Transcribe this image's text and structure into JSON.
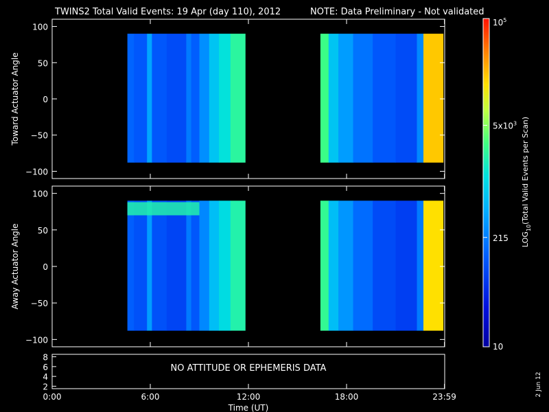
{
  "header": {
    "title": "TWINS2  Total Valid Events: 19 Apr (day 110), 2012",
    "note": "NOTE: Data Preliminary - Not validated",
    "note_color": "#ff2020"
  },
  "footer": {
    "date_stamp": "2 Jun 12",
    "no_data_message": "NO ATTITUDE OR EPHEMERIS DATA"
  },
  "colorbar": {
    "label": "LOG10(Total Valid Events per Scan)",
    "label_prefix": "LOG",
    "label_subscript": "10",
    "label_suffix": "(Total Valid Events per Scan)",
    "scale": "log",
    "ticks": [
      {
        "value": 10,
        "text": "10"
      },
      {
        "value": 215,
        "text": "215"
      },
      {
        "value": 5000,
        "text_base": "5x10",
        "text_exp": "3"
      },
      {
        "value": 100000,
        "text_base": "10",
        "text_exp": "5"
      }
    ]
  },
  "chart_data": [
    {
      "type": "heatmap",
      "name": "toward",
      "ylabel": "Toward Actuator Angle",
      "ylim": [
        -110,
        110
      ],
      "yticks": [
        {
          "v": 100,
          "t": "100"
        },
        {
          "v": 50,
          "t": "50"
        },
        {
          "v": 0,
          "t": "0"
        },
        {
          "v": -50,
          "t": "−50"
        },
        {
          "v": -100,
          "t": "−100"
        }
      ],
      "angle_range": [
        -88,
        90
      ],
      "segments": [
        {
          "t_start": 4.6,
          "t_end": 11.8,
          "note": "morning pass"
        },
        {
          "t_start": 16.4,
          "t_end": 23.9,
          "note": "evening pass"
        }
      ],
      "time_columns": [
        {
          "t0": 4.6,
          "t1": 5.0,
          "log10": 2.15
        },
        {
          "t0": 5.0,
          "t1": 5.8,
          "log10": 2.05
        },
        {
          "t0": 5.8,
          "t1": 6.1,
          "log10": 2.6
        },
        {
          "t0": 6.1,
          "t1": 7.0,
          "log10": 2.05
        },
        {
          "t0": 7.0,
          "t1": 8.2,
          "log10": 1.95
        },
        {
          "t0": 8.2,
          "t1": 8.5,
          "log10": 2.3
        },
        {
          "t0": 8.5,
          "t1": 9.0,
          "log10": 2.1
        },
        {
          "t0": 9.0,
          "t1": 9.6,
          "log10": 2.45
        },
        {
          "t0": 9.6,
          "t1": 10.2,
          "log10": 2.85
        },
        {
          "t0": 10.2,
          "t1": 10.9,
          "log10": 3.1
        },
        {
          "t0": 10.9,
          "t1": 11.8,
          "log10": 3.35
        },
        {
          "t0": 16.4,
          "t1": 16.9,
          "log10": 3.45
        },
        {
          "t0": 16.9,
          "t1": 17.5,
          "log10": 2.85
        },
        {
          "t0": 17.5,
          "t1": 18.4,
          "log10": 2.55
        },
        {
          "t0": 18.4,
          "t1": 19.6,
          "log10": 2.25
        },
        {
          "t0": 19.6,
          "t1": 21.0,
          "log10": 2.05
        },
        {
          "t0": 21.0,
          "t1": 22.3,
          "log10": 1.95
        },
        {
          "t0": 22.3,
          "t1": 22.7,
          "log10": 2.4
        },
        {
          "t0": 22.7,
          "t1": 23.9,
          "log10": 4.3
        }
      ]
    },
    {
      "type": "heatmap",
      "name": "away",
      "ylabel": "Away Actuator Angle",
      "ylim": [
        -110,
        110
      ],
      "yticks": [
        {
          "v": 100,
          "t": "100"
        },
        {
          "v": 50,
          "t": "50"
        },
        {
          "v": 0,
          "t": "0"
        },
        {
          "v": -50,
          "t": "−50"
        },
        {
          "v": -100,
          "t": "−100"
        }
      ],
      "angle_range": [
        -88,
        90
      ],
      "segments": [
        {
          "t_start": 4.6,
          "t_end": 11.8
        },
        {
          "t_start": 16.4,
          "t_end": 23.9
        }
      ],
      "time_columns": [
        {
          "t0": 4.6,
          "t1": 5.0,
          "log10": 2.1
        },
        {
          "t0": 5.0,
          "t1": 5.8,
          "log10": 2.0
        },
        {
          "t0": 5.8,
          "t1": 6.1,
          "log10": 2.55
        },
        {
          "t0": 6.1,
          "t1": 7.0,
          "log10": 2.0
        },
        {
          "t0": 7.0,
          "t1": 8.2,
          "log10": 1.9
        },
        {
          "t0": 8.2,
          "t1": 8.5,
          "log10": 2.3
        },
        {
          "t0": 8.5,
          "t1": 9.0,
          "log10": 2.05
        },
        {
          "t0": 9.0,
          "t1": 9.6,
          "log10": 2.4
        },
        {
          "t0": 9.6,
          "t1": 10.2,
          "log10": 2.8
        },
        {
          "t0": 10.2,
          "t1": 10.9,
          "log10": 3.05
        },
        {
          "t0": 10.9,
          "t1": 11.8,
          "log10": 3.3
        },
        {
          "t0": 16.4,
          "t1": 16.9,
          "log10": 3.4
        },
        {
          "t0": 16.9,
          "t1": 17.5,
          "log10": 2.8
        },
        {
          "t0": 17.5,
          "t1": 18.4,
          "log10": 2.5
        },
        {
          "t0": 18.4,
          "t1": 19.6,
          "log10": 2.2
        },
        {
          "t0": 19.6,
          "t1": 21.0,
          "log10": 1.95
        },
        {
          "t0": 21.0,
          "t1": 22.3,
          "log10": 1.85
        },
        {
          "t0": 22.3,
          "t1": 22.7,
          "log10": 2.3
        },
        {
          "t0": 22.7,
          "t1": 23.9,
          "log10": 4.2
        }
      ],
      "features": [
        {
          "t0": 4.6,
          "t1": 9.0,
          "angle0": 70,
          "angle1": 88,
          "log10": 3.3,
          "note": "high-angle band"
        }
      ]
    },
    {
      "type": "line",
      "name": "ephemeris",
      "ylim": [
        1.5,
        8.5
      ],
      "yticks": [
        {
          "v": 8,
          "t": "8"
        },
        {
          "v": 6,
          "t": "6"
        },
        {
          "v": 4,
          "t": "4"
        },
        {
          "v": 2,
          "t": "2"
        }
      ],
      "xlabel": "Time (UT)",
      "xlim": [
        0,
        24
      ],
      "xticks": [
        {
          "v": 0,
          "t": "0:00"
        },
        {
          "v": 6,
          "t": "6:00"
        },
        {
          "v": 12,
          "t": "12:00"
        },
        {
          "v": 18,
          "t": "18:00"
        },
        {
          "v": 23.983,
          "t": "23:59"
        }
      ]
    }
  ]
}
